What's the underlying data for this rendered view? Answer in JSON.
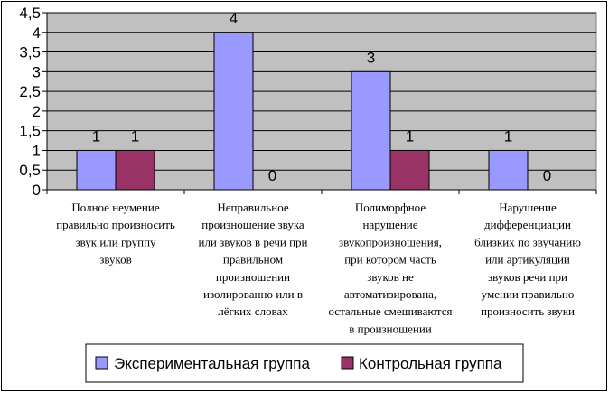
{
  "chart_data": {
    "type": "bar",
    "categories": [
      "Полное неумение правильно произносить звук или группу звуков",
      "Неправильное произношение звука или звуков в речи при правильном произношении изолированно или в лёгких словах",
      "Полиморфное нарушение звукопроизношения, при котором часть звуков не автоматизирована, остальные смешиваются в произношении",
      "Нарушение дифференциации близких по звучанию или артикуляции звуков речи при умении правильно произносить звуки"
    ],
    "category_lines": [
      [
        "Полное неумение",
        "правильно произносить",
        "звук или группу",
        "звуков"
      ],
      [
        "Неправильное",
        "произношение звука",
        "или звуков в речи при",
        "правильном",
        "произношении",
        "изолированно или в",
        "лёгких словах"
      ],
      [
        "Полиморфное",
        "нарушение",
        "звукопроизношения,",
        "при котором часть",
        "звуков не",
        "автоматизирована,",
        "остальные смешиваются",
        "в произношении"
      ],
      [
        "Нарушение",
        "дифференциации",
        "близких по звучанию",
        "или артикуляции",
        "звуков речи при",
        "умении правильно",
        "произносить звуки"
      ]
    ],
    "series": [
      {
        "name": "Экспериментальная группа",
        "values": [
          1,
          4,
          3,
          1
        ],
        "color": "#9999ff"
      },
      {
        "name": "Контрольная группа",
        "values": [
          1,
          0,
          1,
          0
        ],
        "color": "#993366"
      }
    ],
    "ylim": [
      0,
      4.5
    ],
    "yticks": [
      0,
      0.5,
      1,
      1.5,
      2,
      2.5,
      3,
      3.5,
      4,
      4.5
    ],
    "ytick_labels": [
      "0",
      "0,5",
      "1",
      "1,5",
      "2",
      "2,5",
      "3",
      "3,5",
      "4",
      "4,5"
    ],
    "data_labels": [
      [
        "1",
        "4",
        "3",
        "1"
      ],
      [
        "1",
        "0",
        "1",
        "0"
      ]
    ],
    "title": "",
    "xlabel": "",
    "ylabel": "",
    "grid": true,
    "plot_background": "#c0c0c0",
    "legend_position": "bottom"
  }
}
